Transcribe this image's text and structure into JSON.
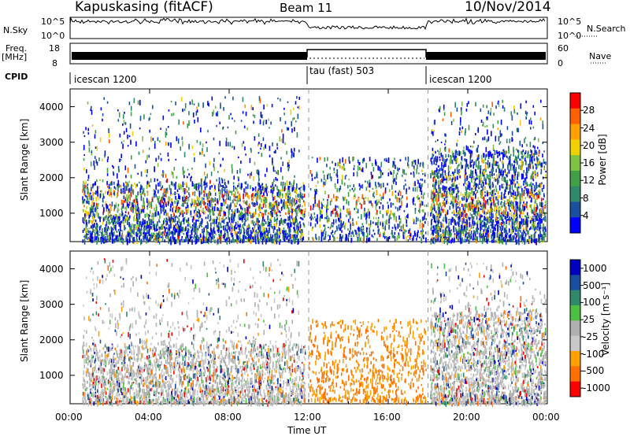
{
  "header": {
    "station": "Kapuskasing (fitACF)",
    "beam": "Beam 11",
    "date": "10/Nov/2014"
  },
  "panels": {
    "nsky_label": "N.Sky",
    "nsky_ticks": [
      "10^5",
      "10^0"
    ],
    "nsearch_label": "N.Search",
    "nsearch_ticks": [
      "10^5",
      "10^0"
    ],
    "freq_label_1": "Freq.",
    "freq_label_2": "[MHz]",
    "freq_ticks": [
      "18",
      "8"
    ],
    "nave_label": "Nave",
    "nave_ticks": [
      "60",
      "0"
    ],
    "cpid_label": "CPID",
    "cpid_segments": [
      "icescan 1200",
      "tau (fast) 503",
      "icescan 1200"
    ]
  },
  "colors": {
    "power": [
      "#0000ff",
      "#1a4fa0",
      "#2f8a6a",
      "#3fa046",
      "#7fc341",
      "#f0d000",
      "#ffa000",
      "#ff6000",
      "#ff0000"
    ],
    "velocity": [
      "#0000c0",
      "#1a4fa0",
      "#2f8a6a",
      "#4cc040",
      "#b0b0b0",
      "#c8c8c8",
      "#ffa000",
      "#ff7000",
      "#ff0000"
    ]
  },
  "chart_data": [
    {
      "type": "heatmap",
      "name": "power",
      "xlabel": "",
      "ylabel": "Slant Range [km]",
      "x_ticks": [
        "00:00",
        "04:00",
        "08:00",
        "12:00",
        "16:00",
        "20:00",
        "00:00"
      ],
      "y_ticks": [
        "1000",
        "2000",
        "3000",
        "4000"
      ],
      "ylim": [
        200,
        4500
      ],
      "colorbar_label": "Power [dB]",
      "colorbar_ticks": [
        "4",
        "8",
        "12",
        "16",
        "20",
        "24",
        "28"
      ]
    },
    {
      "type": "heatmap",
      "name": "velocity",
      "xlabel": "Time UT",
      "ylabel": "Slant Range [km]",
      "x_ticks": [
        "00:00",
        "04:00",
        "08:00",
        "12:00",
        "16:00",
        "20:00",
        "00:00"
      ],
      "y_ticks": [
        "1000",
        "2000",
        "3000",
        "4000"
      ],
      "ylim": [
        200,
        4500
      ],
      "colorbar_label": "Velocity [m s⁻¹]",
      "colorbar_ticks": [
        "1000",
        "500",
        "100",
        "25",
        "-25",
        "-100",
        "-500",
        "-1000"
      ]
    }
  ]
}
